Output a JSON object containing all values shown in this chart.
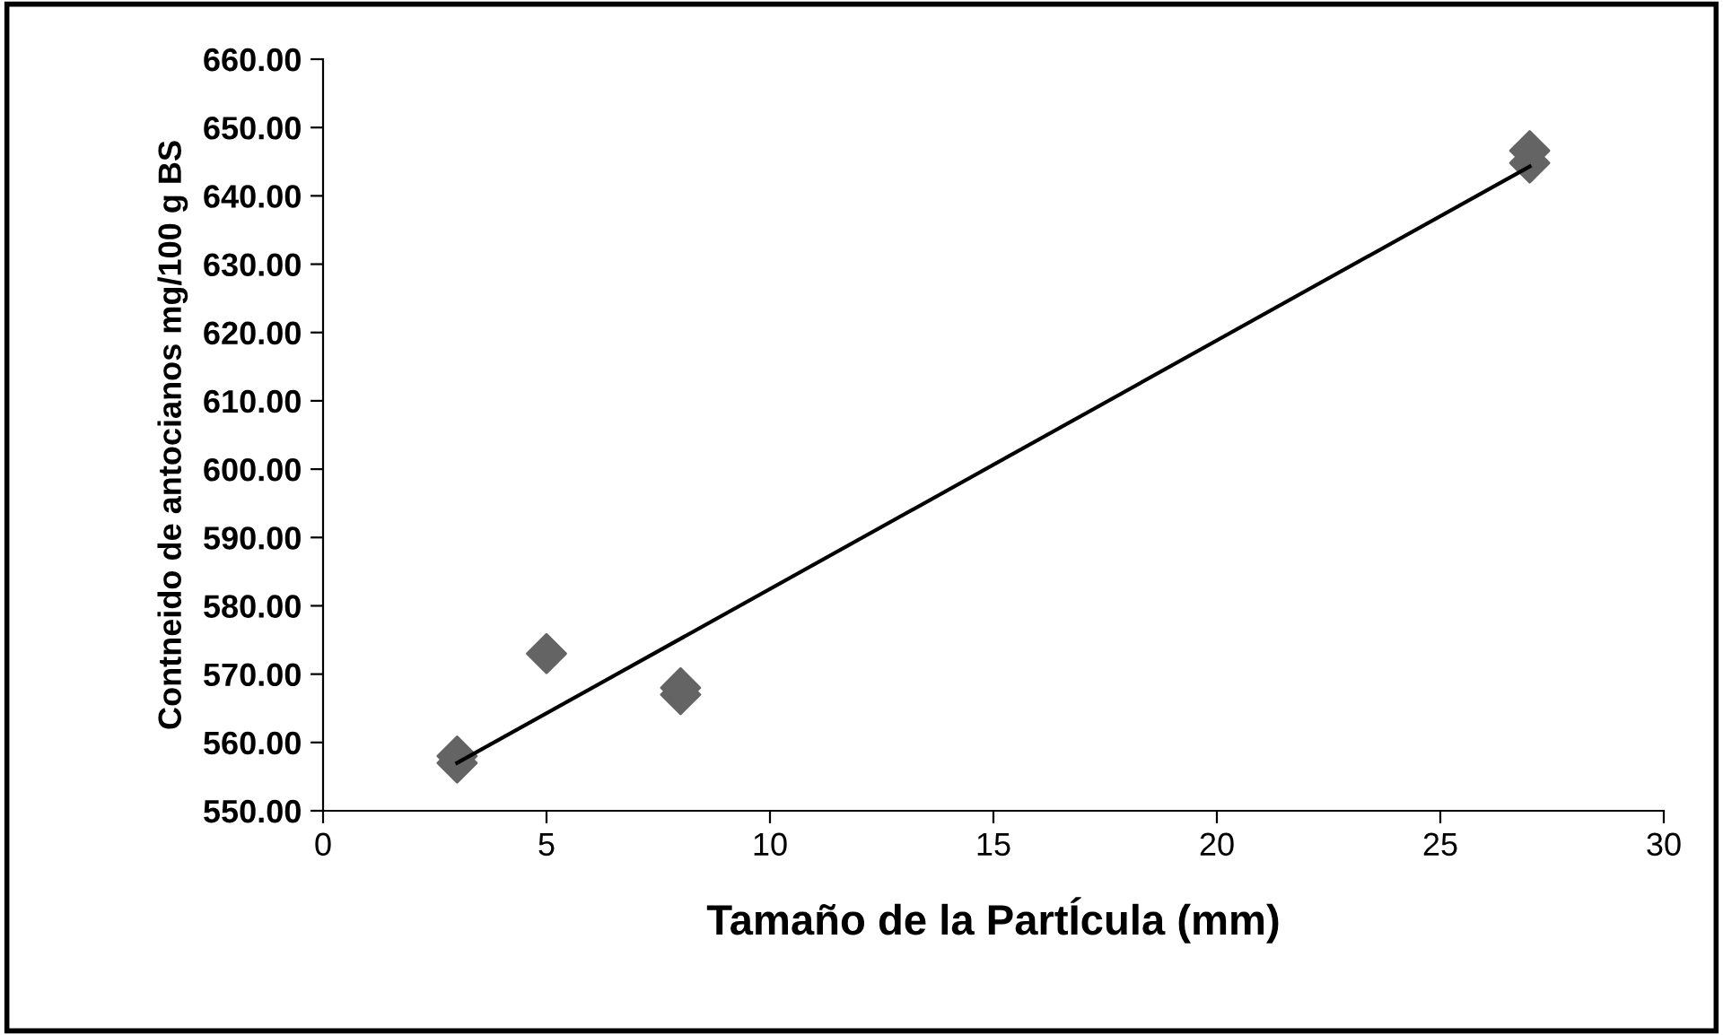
{
  "chart_data": {
    "type": "scatter",
    "xlabel": "Tamaño de la PartÍcula (mm)",
    "ylabel": "Contneido de antocianos mg/100 g BS",
    "xlim": [
      0,
      30
    ],
    "xticks": [
      0,
      5,
      10,
      15,
      20,
      25,
      30
    ],
    "ylim": [
      550,
      660
    ],
    "yticks": [
      {
        "value": 550,
        "label": "550.00"
      },
      {
        "value": 560,
        "label": "560.00"
      },
      {
        "value": 570,
        "label": "570.00"
      },
      {
        "value": 580,
        "label": "580.00"
      },
      {
        "value": 590,
        "label": "590.00"
      },
      {
        "value": 600,
        "label": "600.00"
      },
      {
        "value": 610,
        "label": "610.00"
      },
      {
        "value": 620,
        "label": "620.00"
      },
      {
        "value": 630,
        "label": "630.00"
      },
      {
        "value": 640,
        "label": "640.00"
      },
      {
        "value": 650,
        "label": "650.00"
      },
      {
        "value": 660,
        "label": "660.00"
      }
    ],
    "grid": false,
    "legend": false,
    "series": [
      {
        "color": "#646464",
        "marker": "diamond",
        "x": [
          3,
          3,
          5,
          8,
          8,
          27,
          27
        ],
        "values": [
          557,
          558,
          573,
          567,
          568,
          644.8,
          646.6
        ]
      },
      {
        "type": "line",
        "color": "#000000",
        "marker": "none",
        "x": [
          3,
          27
        ],
        "values": [
          557,
          644.3
        ]
      }
    ]
  }
}
